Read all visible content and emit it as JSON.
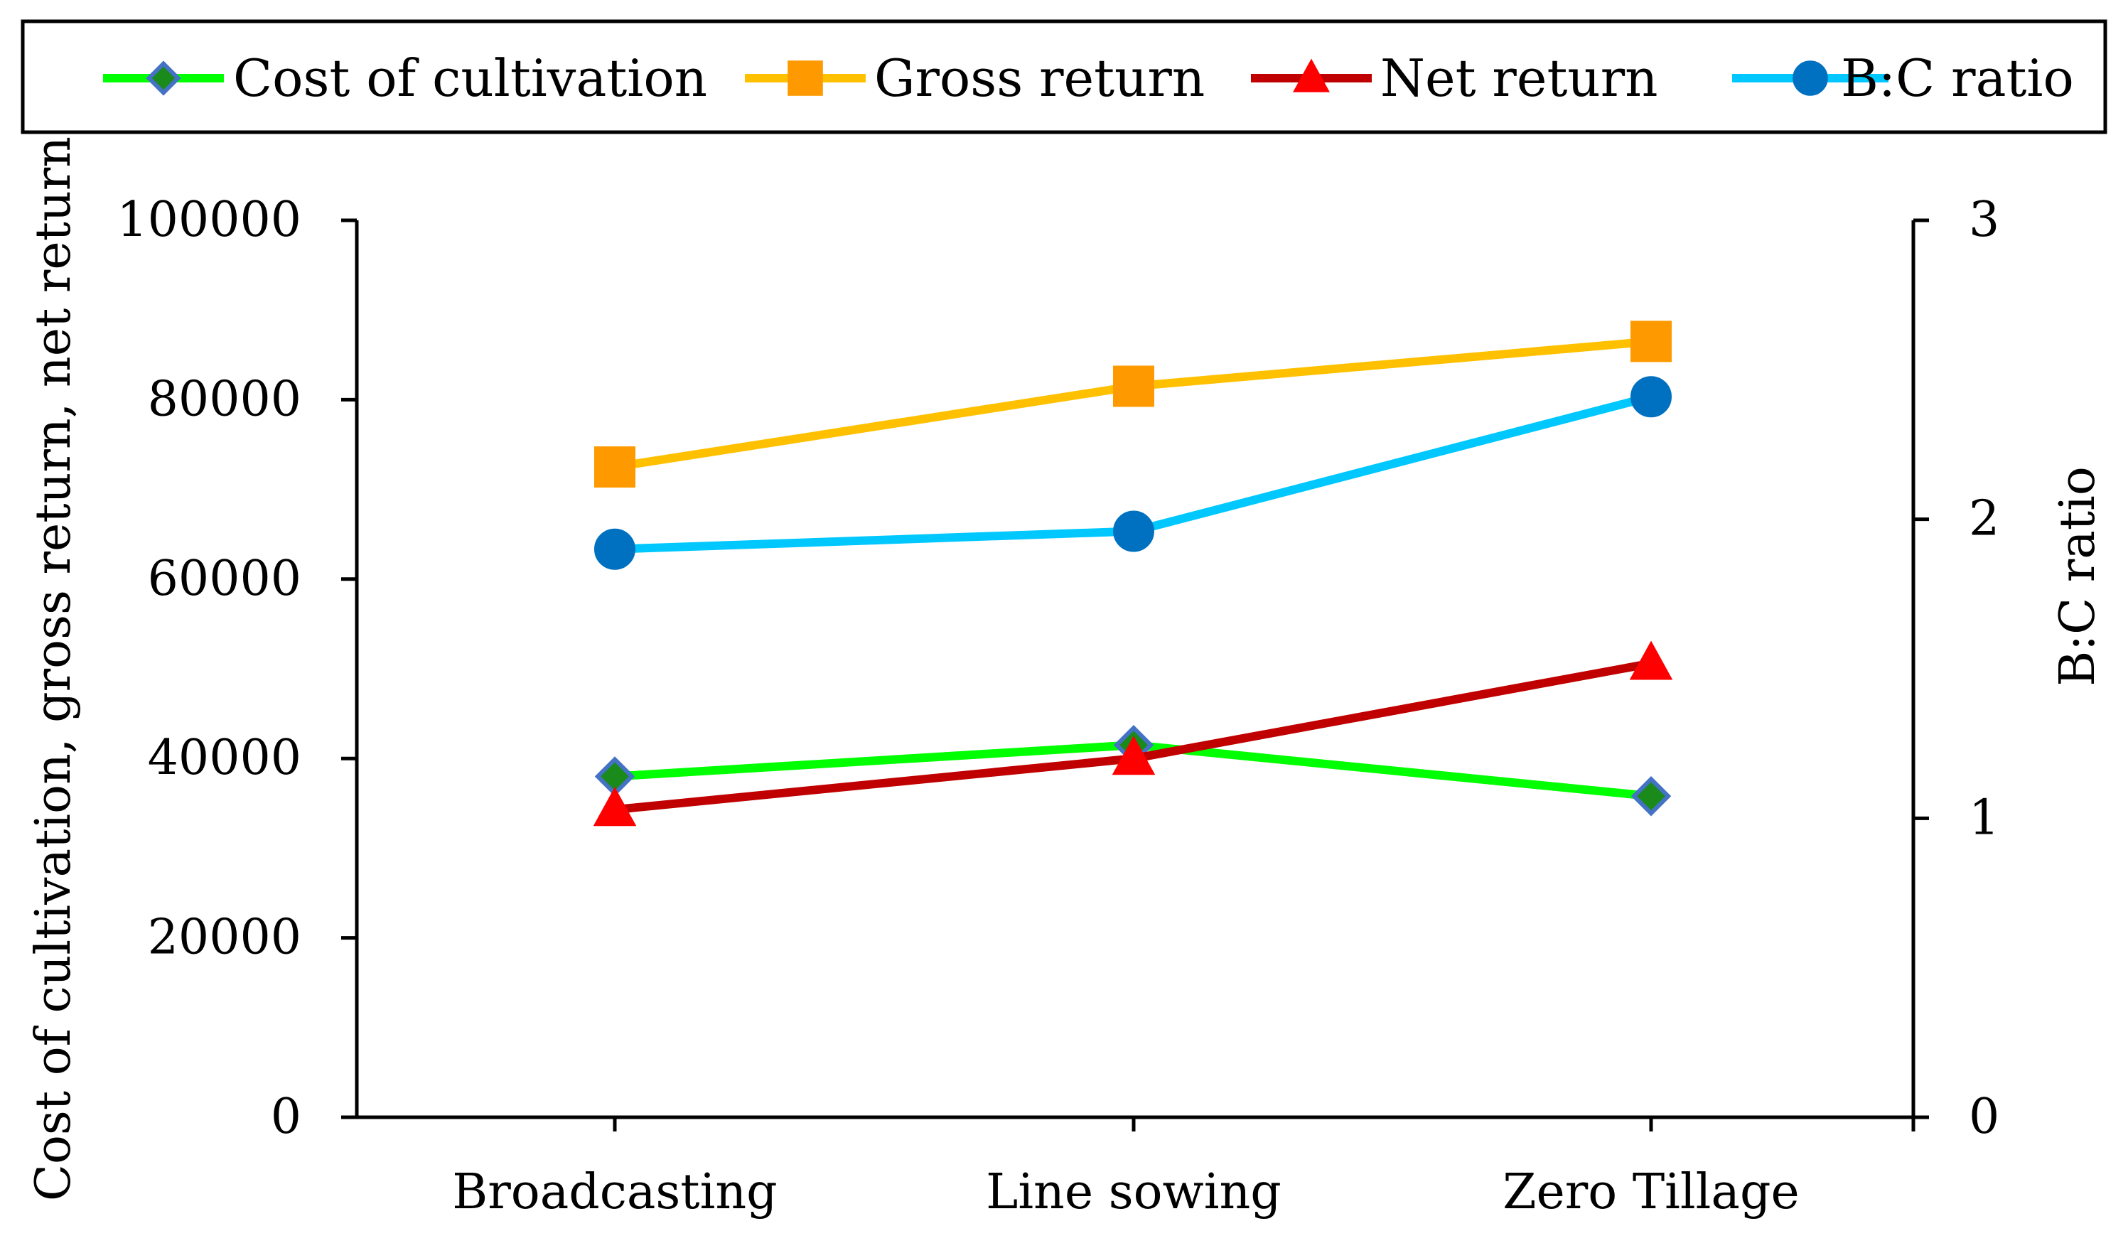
{
  "chart_data": {
    "type": "line",
    "title": "",
    "categories": [
      "Broadcasting",
      "Line sowing",
      "Zero Tillage"
    ],
    "ylabel": "Cost of cultivation, gross return, net return",
    "y2label": "B:C ratio",
    "xlabel": "",
    "ylim": [
      0,
      100000
    ],
    "y2lim": [
      0,
      3
    ],
    "yticks": [
      "0",
      "20000",
      "40000",
      "60000",
      "80000",
      "100000"
    ],
    "y2ticks": [
      "0",
      "1",
      "2",
      "3"
    ],
    "legend_position": "top",
    "series": [
      {
        "name": "Cost of cultivation",
        "axis": "left",
        "values": [
          38000,
          41500,
          35800
        ],
        "line_color": "#00ff00",
        "marker": "diamond",
        "marker_fill": "#1a8a1a",
        "marker_stroke": "#4472c4"
      },
      {
        "name": "Gross return",
        "axis": "left",
        "values": [
          72500,
          81500,
          86500
        ],
        "line_color": "#ffc000",
        "marker": "square",
        "marker_fill": "#ff9900",
        "marker_stroke": "#ff9900"
      },
      {
        "name": "Net return",
        "axis": "left",
        "values": [
          34300,
          40000,
          50600
        ],
        "line_color": "#c00000",
        "marker": "triangle",
        "marker_fill": "#ff0000",
        "marker_stroke": "#ff0000"
      },
      {
        "name": "B:C ratio",
        "axis": "right",
        "values": [
          1.9,
          1.96,
          2.41
        ],
        "line_color": "#00c8ff",
        "marker": "circle",
        "marker_fill": "#0070c0",
        "marker_stroke": "#0070c0"
      }
    ]
  }
}
